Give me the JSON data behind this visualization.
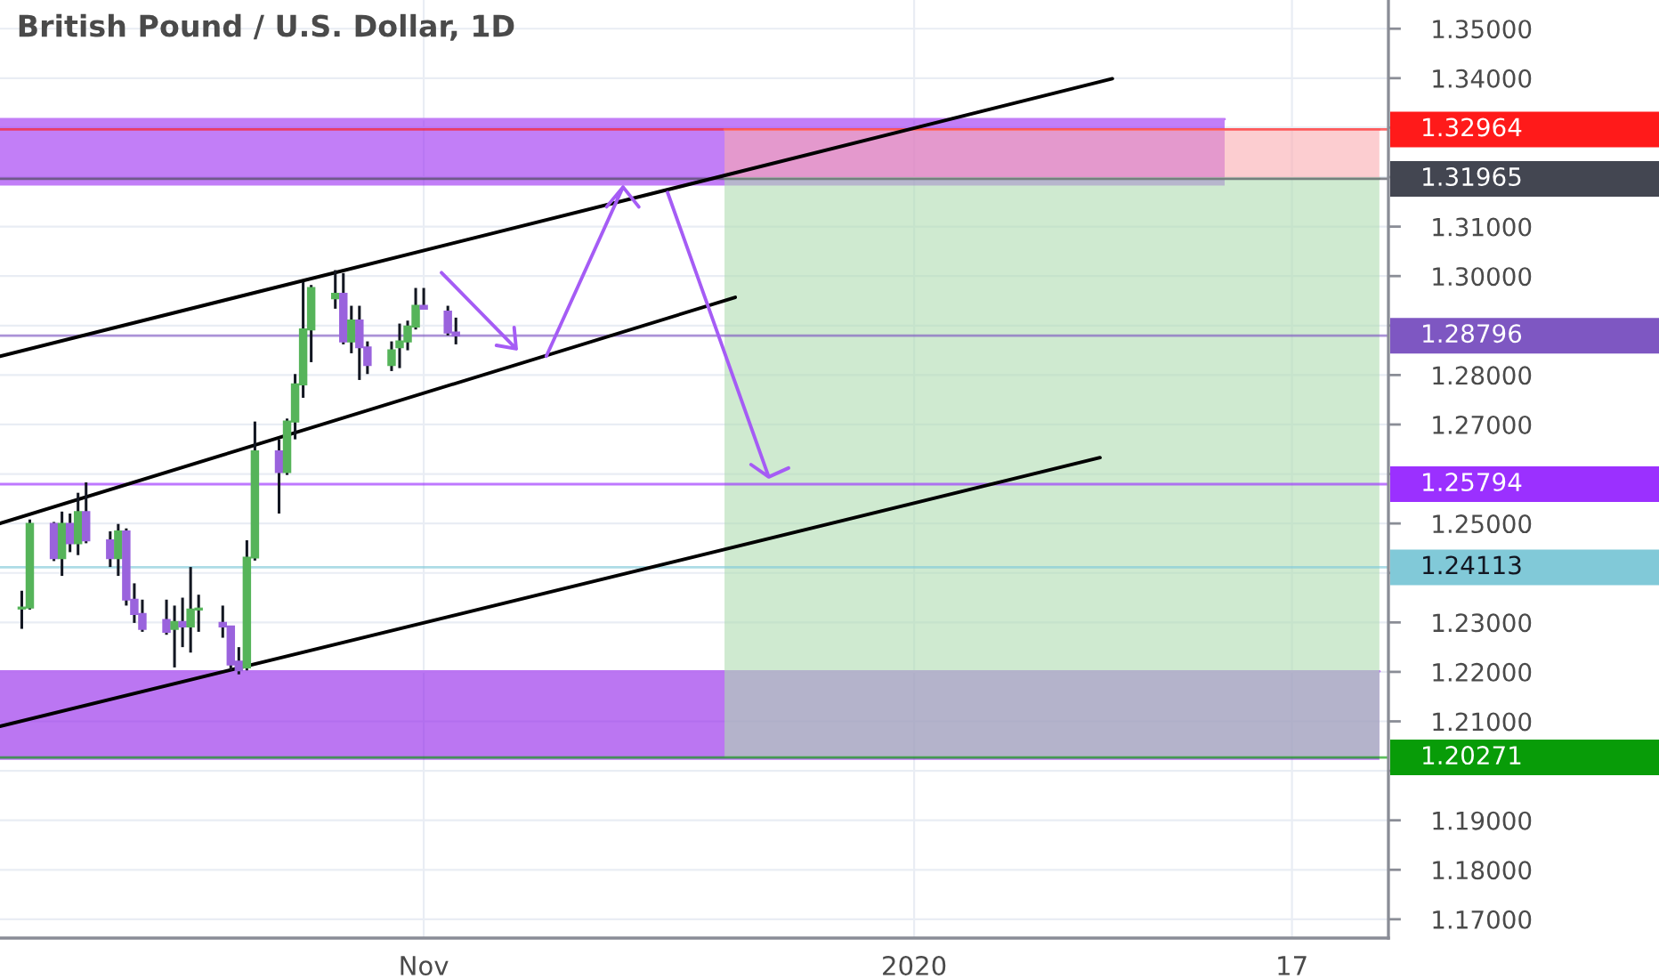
{
  "chart_data": {
    "type": "candlestick",
    "title": "British Pound / U.S. Dollar, 1D",
    "x": [
      "2019-09-12",
      "2019-09-13",
      "2019-09-16",
      "2019-09-17",
      "2019-09-18",
      "2019-09-19",
      "2019-09-20",
      "2019-09-23",
      "2019-09-24",
      "2019-09-25",
      "2019-09-26",
      "2019-09-27",
      "2019-09-30",
      "2019-10-01",
      "2019-10-02",
      "2019-10-03",
      "2019-10-04",
      "2019-10-07",
      "2019-10-08",
      "2019-10-09",
      "2019-10-10",
      "2019-10-11",
      "2019-10-14",
      "2019-10-15",
      "2019-10-16",
      "2019-10-17",
      "2019-10-18",
      "2019-10-21",
      "2019-10-22",
      "2019-10-23",
      "2019-10-24",
      "2019-10-25",
      "2019-10-28",
      "2019-10-29",
      "2019-10-30",
      "2019-10-31",
      "2019-11-01",
      "2019-11-04",
      "2019-11-05"
    ],
    "ohlc": [
      [
        1.2328,
        1.2364,
        1.2287,
        1.233
      ],
      [
        1.233,
        1.2508,
        1.2326,
        1.2499
      ],
      [
        1.2499,
        1.2503,
        1.2424,
        1.243
      ],
      [
        1.243,
        1.2524,
        1.2394,
        1.2499
      ],
      [
        1.2499,
        1.252,
        1.2442,
        1.246
      ],
      [
        1.246,
        1.2562,
        1.2436,
        1.2523
      ],
      [
        1.2523,
        1.2583,
        1.246,
        1.2466
      ],
      [
        1.2466,
        1.2484,
        1.2412,
        1.243
      ],
      [
        1.243,
        1.2499,
        1.2394,
        1.2484
      ],
      [
        1.2484,
        1.249,
        1.2334,
        1.2346
      ],
      [
        1.2346,
        1.2379,
        1.2299,
        1.2317
      ],
      [
        1.2317,
        1.2346,
        1.2281,
        1.2287
      ],
      [
        1.2305,
        1.2346,
        1.2275,
        1.2281
      ],
      [
        1.2287,
        1.2334,
        1.2209,
        1.2301
      ],
      [
        1.2301,
        1.235,
        1.225,
        1.2292
      ],
      [
        1.2292,
        1.2412,
        1.2239,
        1.2326
      ],
      [
        1.2326,
        1.2356,
        1.2281,
        1.2328
      ],
      [
        1.2299,
        1.2334,
        1.2269,
        1.2292
      ],
      [
        1.2292,
        1.2292,
        1.2203,
        1.2215
      ],
      [
        1.2221,
        1.225,
        1.2195,
        1.2203
      ],
      [
        1.2209,
        1.2466,
        1.2203,
        1.2431
      ],
      [
        1.2431,
        1.2706,
        1.2425,
        1.2646
      ],
      [
        1.2646,
        1.267,
        1.252,
        1.2604
      ],
      [
        1.2604,
        1.2712,
        1.2598,
        1.2706
      ],
      [
        1.2706,
        1.2802,
        1.267,
        1.2781
      ],
      [
        1.2781,
        1.2988,
        1.2754,
        1.2892
      ],
      [
        1.2892,
        1.2982,
        1.2826,
        1.2976
      ],
      [
        1.2955,
        1.3012,
        1.2934,
        1.2964
      ],
      [
        1.2964,
        1.3006,
        1.2862,
        1.2868
      ],
      [
        1.2868,
        1.294,
        1.2844,
        1.291
      ],
      [
        1.291,
        1.294,
        1.279,
        1.2856
      ],
      [
        1.2856,
        1.2868,
        1.2802,
        1.282
      ],
      [
        1.282,
        1.2868,
        1.2808,
        1.285
      ],
      [
        1.2856,
        1.2904,
        1.2814,
        1.2868
      ],
      [
        1.2868,
        1.291,
        1.285,
        1.2898
      ],
      [
        1.2898,
        1.2976,
        1.2892,
        1.294
      ],
      [
        1.294,
        1.2976,
        1.2934,
        1.2934
      ],
      [
        1.2928,
        1.294,
        1.288,
        1.2886
      ],
      [
        1.2886,
        1.2916,
        1.2862,
        1.288
      ]
    ],
    "colors": [
      "#56b45a",
      "#56b45a",
      "#9a63dd",
      "#56b45a",
      "#9a63dd",
      "#56b45a",
      "#9a63dd",
      "#9a63dd",
      "#56b45a",
      "#9a63dd",
      "#9a63dd",
      "#9a63dd",
      "#9a63dd",
      "#56b45a",
      "#9a63dd",
      "#56b45a",
      "#56b45a",
      "#9a63dd",
      "#9a63dd",
      "#9a63dd",
      "#56b45a",
      "#56b45a",
      "#9a63dd",
      "#56b45a",
      "#56b45a",
      "#56b45a",
      "#56b45a",
      "#56b45a",
      "#9a63dd",
      "#56b45a",
      "#9a63dd",
      "#9a63dd",
      "#56b45a",
      "#56b45a",
      "#56b45a",
      "#56b45a",
      "#9a63dd",
      "#9a63dd",
      "#9a63dd"
    ],
    "series": [
      {
        "type": "line",
        "color": "#c27ef7",
        "x": [
          "2019-09-09T07:00",
          "2020-02-08T15:00"
        ],
        "values": [
          1.3317,
          1.3317
        ],
        "lower": [
          1.3183,
          1.3183
        ],
        "upper": [
          1.3317,
          1.3317
        ]
      },
      {
        "type": "line",
        "color": "#bb76f2",
        "x": [
          "2019-09-09T07:00",
          "2020-02-27T21:00"
        ],
        "values": [
          1.2201,
          1.2201
        ],
        "lower": [
          1.2022,
          1.2022
        ],
        "upper": [
          1.2201,
          1.2201
        ]
      },
      {
        "type": "line",
        "color": "#fccdd0",
        "x": [
          "2019-12-08T10:00",
          "2020-02-27T21:00"
        ],
        "values": [
          1.3296,
          1.3296
        ],
        "lower": [
          1.3197,
          1.3197
        ],
        "upper": [
          1.3296,
          1.3296
        ]
      },
      {
        "type": "line",
        "color": "#cfead0",
        "x": [
          "2019-12-08T10:00",
          "2020-02-27T21:00"
        ],
        "values": [
          1.3197,
          1.3197
        ],
        "lower": [
          1.2027,
          1.2027
        ],
        "upper": [
          1.3197,
          1.3197
        ]
      },
      {
        "type": "line",
        "color": "#000000",
        "x": [
          "2019-09-09T07:00",
          "2020-01-25T16:00"
        ],
        "values": [
          1.2838,
          1.3399
        ]
      },
      {
        "type": "line",
        "color": "#000000",
        "x": [
          "2019-09-09T07:00",
          "2019-12-09T18:00"
        ],
        "values": [
          1.25,
          1.2957
        ]
      },
      {
        "type": "line",
        "color": "#000000",
        "x": [
          "2019-09-09T07:00",
          "2020-01-24T03:00"
        ],
        "values": [
          1.209,
          1.2633
        ]
      },
      {
        "type": "line",
        "color": "#a55cf5",
        "x": [
          "2019-11-03T05:00",
          "2019-11-12T12:00",
          "2019-11-10T01:00",
          "2019-11-12T12:00",
          "2019-11-12T06:00"
        ],
        "values": [
          1.3007,
          1.2853,
          1.286,
          1.2853,
          1.2896
        ]
      },
      {
        "type": "line",
        "color": "#a55cf5",
        "x": [
          "2019-11-16T06:00",
          "2019-11-25T19:00",
          "2019-11-23T18:00",
          "2019-11-25T19:00",
          "2019-11-27T18:00"
        ],
        "values": [
          1.2838,
          1.318,
          1.314,
          1.318,
          1.314
        ]
      },
      {
        "type": "line",
        "color": "#a55cf5",
        "x": [
          "2019-12-01T08:00",
          "2019-12-13T22:00",
          "2019-12-11T17:00",
          "2019-12-13T22:00",
          "2019-12-16T09:00"
        ],
        "values": [
          1.3169,
          1.2594,
          1.2619,
          1.2594,
          1.2612
        ]
      }
    ],
    "ref_lines": [
      {
        "axis": "y",
        "value": 1.32964,
        "label": "1.32964",
        "color": "#ff1a1a"
      },
      {
        "axis": "y",
        "value": 1.31965,
        "label": "1.31965",
        "color": "#434651"
      },
      {
        "axis": "y",
        "value": 1.28796,
        "label": "1.28796",
        "color": "#7e57c2"
      },
      {
        "axis": "y",
        "value": 1.25794,
        "label": "1.25794",
        "color": "#9b30ff"
      },
      {
        "axis": "y",
        "value": 1.24113,
        "label": "1.24113",
        "color": "#81c9d8"
      },
      {
        "axis": "y",
        "value": 1.20271,
        "label": "1.20271",
        "color": "#089c08"
      }
    ],
    "xlim": [
      "2019-09-09T07:00",
      "2020-02-29"
    ],
    "xticks": [
      {
        "value": "2019-11-01",
        "label": "Nov"
      },
      {
        "value": "2020-01-01",
        "label": "2020"
      },
      {
        "value": "2020-02-17",
        "label": "17"
      }
    ],
    "ylim": [
      1.1662,
      1.3558
    ],
    "yticks": [
      {
        "value": 1.17,
        "label": "1.17000"
      },
      {
        "value": 1.18,
        "label": "1.18000"
      },
      {
        "value": 1.19,
        "label": "1.19000"
      },
      {
        "value": 1.2,
        "label": null
      },
      {
        "value": 1.21,
        "label": "1.21000"
      },
      {
        "value": 1.22,
        "label": "1.22000"
      },
      {
        "value": 1.23,
        "label": "1.23000"
      },
      {
        "value": 1.24,
        "label": null
      },
      {
        "value": 1.25,
        "label": "1.25000"
      },
      {
        "value": 1.26,
        "label": null
      },
      {
        "value": 1.27,
        "label": "1.27000"
      },
      {
        "value": 1.28,
        "label": "1.28000"
      },
      {
        "value": 1.29,
        "label": null
      },
      {
        "value": 1.3,
        "label": "1.30000"
      },
      {
        "value": 1.31,
        "label": "1.31000"
      },
      {
        "value": 1.32,
        "label": null
      },
      {
        "value": 1.33,
        "label": null
      },
      {
        "value": 1.34,
        "label": "1.34000"
      },
      {
        "value": 1.35,
        "label": "1.35000"
      }
    ],
    "grid": true
  }
}
